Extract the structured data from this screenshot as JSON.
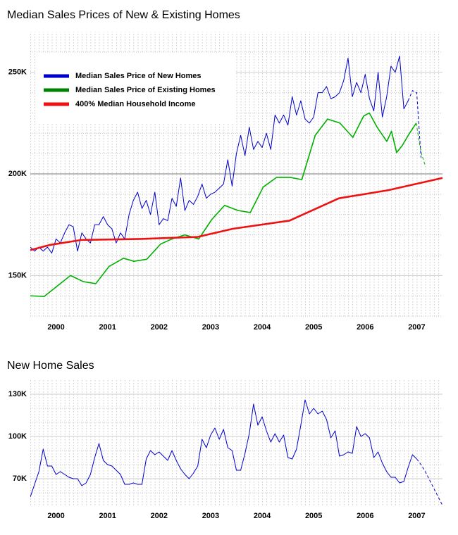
{
  "chart_data": [
    {
      "type": "line",
      "title": "Median Sales Prices of New & Existing Homes",
      "xlim": [
        2000,
        2008
      ],
      "xticks": [
        {
          "value": 2000.5,
          "label": "2000"
        },
        {
          "value": 2001.5,
          "label": "2001"
        },
        {
          "value": 2002.5,
          "label": "2002"
        },
        {
          "value": 2003.5,
          "label": "2003"
        },
        {
          "value": 2004.5,
          "label": "2004"
        },
        {
          "value": 2005.5,
          "label": "2005"
        },
        {
          "value": 2006.5,
          "label": "2006"
        },
        {
          "value": 2007.5,
          "label": "2007"
        }
      ],
      "ylim": [
        129,
        270
      ],
      "yticks": [
        {
          "value": 150,
          "label": "150K"
        },
        {
          "value": 200,
          "label": "200K"
        },
        {
          "value": 250,
          "label": "250K"
        }
      ],
      "minor_yticks": [
        130,
        140,
        160,
        170,
        180,
        190,
        210,
        220,
        230,
        240,
        260
      ],
      "reference_line": 200,
      "grid": true,
      "legend": "upper left",
      "series": [
        {
          "name": "Median Sales Price of New Homes",
          "color": "#0000cc",
          "width": 1,
          "x": [
            2000,
            2000.083,
            2000.167,
            2000.25,
            2000.333,
            2000.417,
            2000.5,
            2000.583,
            2000.667,
            2000.75,
            2000.833,
            2000.917,
            2001,
            2001.083,
            2001.167,
            2001.25,
            2001.333,
            2001.417,
            2001.5,
            2001.583,
            2001.667,
            2001.75,
            2001.833,
            2001.917,
            2002,
            2002.083,
            2002.167,
            2002.25,
            2002.333,
            2002.417,
            2002.5,
            2002.583,
            2002.667,
            2002.75,
            2002.833,
            2002.917,
            2003,
            2003.083,
            2003.167,
            2003.25,
            2003.333,
            2003.417,
            2003.5,
            2003.583,
            2003.667,
            2003.75,
            2003.833,
            2003.917,
            2004,
            2004.083,
            2004.167,
            2004.25,
            2004.333,
            2004.417,
            2004.5,
            2004.583,
            2004.667,
            2004.75,
            2004.833,
            2004.917,
            2005,
            2005.083,
            2005.167,
            2005.25,
            2005.333,
            2005.417,
            2005.5,
            2005.583,
            2005.667,
            2005.75,
            2005.833,
            2005.917,
            2006,
            2006.083,
            2006.167,
            2006.25,
            2006.333,
            2006.417,
            2006.5,
            2006.583,
            2006.667,
            2006.75,
            2006.833,
            2006.917,
            2007,
            2007.083,
            2007.167,
            2007.25,
            2007.333
          ],
          "values": [
            164,
            162,
            164,
            162,
            164,
            161,
            168,
            166,
            171,
            175,
            174,
            162,
            171,
            168,
            166,
            175,
            175,
            179,
            175,
            173,
            166,
            171,
            168,
            180,
            187,
            191,
            183,
            187,
            180,
            191,
            175,
            178,
            177,
            188,
            184,
            198,
            182,
            187,
            185,
            189,
            195,
            188,
            190,
            191,
            193,
            195,
            207,
            194,
            210,
            219,
            209,
            223,
            212,
            216,
            213,
            220,
            212,
            229,
            225,
            229,
            224,
            238,
            229,
            236,
            227,
            225,
            228,
            240,
            240,
            243,
            237,
            238,
            240,
            246,
            257,
            238,
            245,
            240,
            249,
            237,
            231,
            250,
            228,
            238,
            253,
            250,
            258,
            232,
            236
          ]
        },
        {
          "color": "#0000cc",
          "width": 1,
          "dashed": true,
          "x": [
            2007.333,
            2007.417,
            2007.5,
            2007.583
          ],
          "values": [
            236,
            241,
            240,
            208
          ]
        },
        {
          "name": "Median Sales Price of Existing Homes",
          "color": "#00b000",
          "legend_color": "#008000",
          "width": 1.6,
          "x": [
            2000,
            2000.27,
            2000.78,
            2001.03,
            2001.27,
            2001.53,
            2001.81,
            2002.01,
            2002.26,
            2002.53,
            2002.75,
            2003,
            2003.27,
            2003.52,
            2003.77,
            2004.03,
            2004.27,
            2004.52,
            2004.78,
            2005.04,
            2005.27,
            2005.53,
            2005.77,
            2006.01,
            2006.26,
            2006.47,
            2006.58,
            2006.73,
            2006.92,
            2007.01,
            2007.11,
            2007.22,
            2007.36,
            2007.49
          ],
          "values": [
            140,
            139.7,
            150,
            147,
            146,
            154.5,
            158.5,
            157,
            158,
            165.5,
            168,
            170,
            168,
            177.5,
            184.5,
            182,
            181,
            193.5,
            198.3,
            198.3,
            197.2,
            219,
            227,
            225,
            218,
            228.5,
            230,
            223,
            216,
            221,
            210.5,
            214,
            220,
            225
          ]
        },
        {
          "color": "#00b000",
          "width": 1,
          "dashed": true,
          "x": [
            2007.49,
            2007.58,
            2007.67
          ],
          "values": [
            225,
            211,
            203.6
          ]
        },
        {
          "name": "400% Median Household Income",
          "color": "#ee1111",
          "width": 2.6,
          "x": [
            2000,
            2000.37,
            2000.99,
            2002.15,
            2003.25,
            2003.93,
            2005.03,
            2005.99,
            2006.95,
            2008
          ],
          "values": [
            162.5,
            165,
            167.5,
            168,
            169,
            173,
            177,
            188,
            192,
            198
          ]
        }
      ]
    },
    {
      "type": "line",
      "title": "New Home Sales",
      "xlim": [
        2000,
        2008
      ],
      "xticks": [
        {
          "value": 2000.5,
          "label": "2000"
        },
        {
          "value": 2001.5,
          "label": "2001"
        },
        {
          "value": 2002.5,
          "label": "2002"
        },
        {
          "value": 2003.5,
          "label": "2003"
        },
        {
          "value": 2004.5,
          "label": "2004"
        },
        {
          "value": 2005.5,
          "label": "2005"
        },
        {
          "value": 2006.5,
          "label": "2006"
        },
        {
          "value": 2007.5,
          "label": "2007"
        }
      ],
      "ylim": [
        51,
        140
      ],
      "yticks": [
        {
          "value": 70,
          "label": "70K"
        },
        {
          "value": 100,
          "label": "100K"
        },
        {
          "value": 130,
          "label": "130K"
        }
      ],
      "minor_yticks": [
        60,
        80,
        90,
        110,
        120
      ],
      "grid": true,
      "series": [
        {
          "color": "#0000cc",
          "width": 1,
          "x": [
            2000,
            2000.083,
            2000.167,
            2000.25,
            2000.333,
            2000.417,
            2000.5,
            2000.583,
            2000.667,
            2000.75,
            2000.833,
            2000.917,
            2001,
            2001.083,
            2001.167,
            2001.25,
            2001.333,
            2001.417,
            2001.5,
            2001.583,
            2001.667,
            2001.75,
            2001.833,
            2001.917,
            2002,
            2002.083,
            2002.167,
            2002.25,
            2002.333,
            2002.417,
            2002.5,
            2002.583,
            2002.667,
            2002.75,
            2002.833,
            2002.917,
            2003,
            2003.083,
            2003.167,
            2003.25,
            2003.333,
            2003.417,
            2003.5,
            2003.583,
            2003.667,
            2003.75,
            2003.833,
            2003.917,
            2004,
            2004.083,
            2004.167,
            2004.25,
            2004.333,
            2004.417,
            2004.5,
            2004.583,
            2004.667,
            2004.75,
            2004.833,
            2004.917,
            2005,
            2005.083,
            2005.167,
            2005.25,
            2005.333,
            2005.417,
            2005.5,
            2005.583,
            2005.667,
            2005.75,
            2005.833,
            2005.917,
            2006,
            2006.083,
            2006.167,
            2006.25,
            2006.333,
            2006.417,
            2006.5,
            2006.583,
            2006.667,
            2006.75,
            2006.833,
            2006.917,
            2007,
            2007.083,
            2007.167,
            2007.25,
            2007.333,
            2007.417,
            2007.5
          ],
          "values": [
            57,
            66,
            75,
            91,
            79,
            79,
            73,
            75,
            73,
            71,
            70,
            70,
            65,
            67,
            73,
            85,
            95,
            83,
            80,
            79,
            76,
            73,
            66,
            66,
            67,
            66,
            66,
            84,
            90,
            87,
            89,
            86,
            83,
            90,
            83,
            77,
            73,
            70,
            74,
            79,
            98,
            92,
            101,
            106,
            98,
            105,
            92,
            90,
            76,
            76,
            88,
            102,
            123,
            108,
            114,
            104,
            96,
            102,
            96,
            101,
            85,
            84,
            91,
            108,
            126,
            116,
            120,
            116,
            118,
            112,
            99,
            104,
            86,
            87,
            89,
            88,
            107,
            100,
            102,
            99,
            85,
            89,
            81,
            75,
            71,
            71,
            67,
            68,
            78,
            87,
            84
          ]
        },
        {
          "color": "#0000cc",
          "width": 1,
          "dashed": true,
          "x": [
            2007.5,
            2007.583,
            2007.667,
            2007.75,
            2007.833,
            2007.917,
            2008
          ],
          "values": [
            84,
            80,
            75,
            69,
            63,
            57,
            51
          ]
        }
      ]
    }
  ]
}
